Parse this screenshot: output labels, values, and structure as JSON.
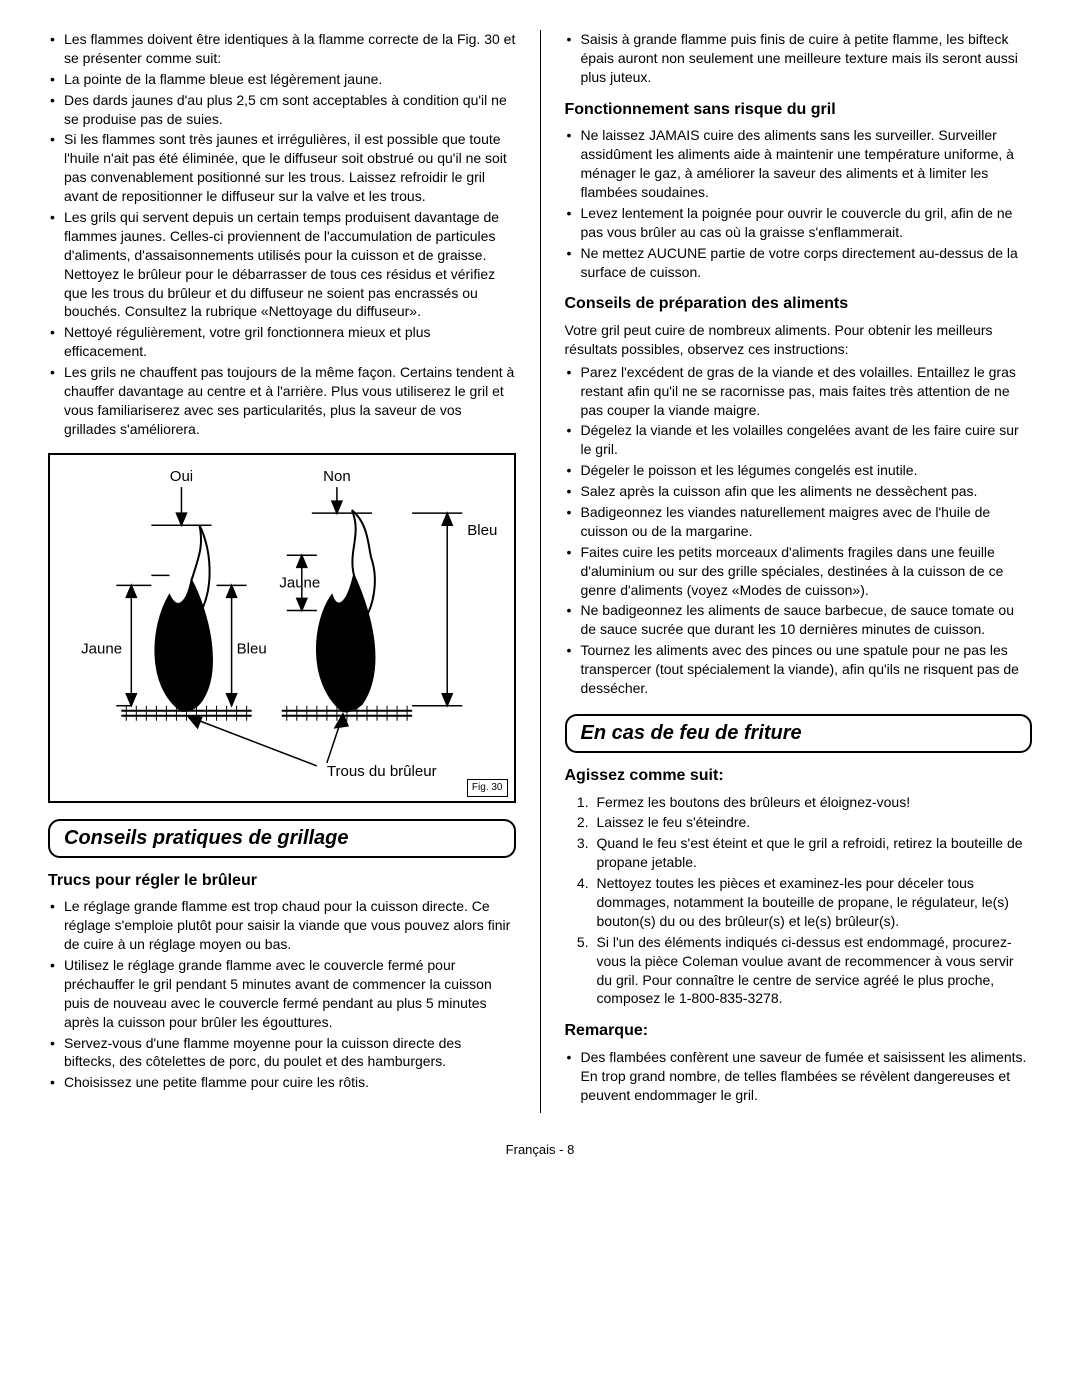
{
  "left": {
    "top_bullets": [
      "Les flammes doivent être identiques à la flamme correcte de la Fig. 30 et se présenter comme suit:",
      "La pointe de la flamme bleue est légèrement jaune.",
      "Des dards jaunes d'au plus 2,5 cm sont acceptables à condition qu'il ne se produise pas de suies.",
      "Si les flammes sont très jaunes et irrégulières, il est possible que toute l'huile n'ait pas été éliminée, que le diffuseur soit obstrué ou qu'il ne soit pas convenablement positionné sur les trous. Laissez refroidir le gril avant de repositionner le diffuseur sur la valve et les trous.",
      "Les grils qui servent depuis un certain temps produisent davantage de flammes jaunes. Celles-ci proviennent de l'accumulation de particules d'aliments, d'assaisonnements utilisés pour la cuisson et de graisse. Nettoyez le brûleur pour le débarrasser de tous ces résidus et vérifiez que les trous du brûleur et du diffuseur ne soient pas encrassés ou bouchés. Consultez la rubrique «Nettoyage du diffuseur».",
      "Nettoyé régulièrement, votre gril fonctionnera mieux et plus efficacement.",
      "Les grils ne chauffent pas toujours de la même façon. Certains tendent à chauffer davantage au centre et à l'arrière. Plus vous utiliserez le gril et vous familiariserez avec ses particularités, plus la saveur de vos grillades s'améliorera."
    ],
    "figure": {
      "oui": "Oui",
      "non": "Non",
      "bleu": "Bleu",
      "jaune": "Jaune",
      "jaune2": "Jaune",
      "bleu2": "Bleu",
      "trous": "Trous du brûleur",
      "caption": "Fig. 30"
    },
    "section1_title": "Conseils pratiques de grillage",
    "sub1": "Trucs pour régler le brûleur",
    "sub1_bullets": [
      "Le réglage grande flamme est trop chaud pour la cuisson directe. Ce réglage s'emploie plutôt pour saisir la viande que vous pouvez alors finir de cuire à un réglage moyen ou bas.",
      "Utilisez le réglage grande flamme avec le couvercle fermé pour préchauffer le gril pendant 5 minutes avant de commencer la cuisson puis de nouveau avec le couvercle fermé pendant au plus 5 minutes après la cuisson pour brûler les égouttures.",
      "Servez-vous d'une flamme moyenne pour la cuisson directe des biftecks, des côtelettes de porc, du poulet et des hamburgers.",
      "Choisissez une petite flamme pour cuire les rôtis."
    ]
  },
  "right": {
    "top_bullets": [
      "Saisis à grande flamme puis finis de cuire à petite flamme, les bifteck épais auront non seulement une meilleure texture mais ils seront aussi plus juteux."
    ],
    "sub1": "Fonctionnement sans risque du gril",
    "sub1_bullets": [
      "Ne laissez JAMAIS cuire des aliments sans les surveiller. Surveiller assidûment les aliments aide à maintenir une température uniforme, à ménager le gaz, à améliorer la saveur des aliments et à limiter les flambées soudaines.",
      "Levez lentement la poignée pour ouvrir le couvercle du gril, afin de ne pas vous brûler au cas où la graisse s'enflammerait.",
      "Ne mettez AUCUNE partie de votre corps directement au-dessus de la surface de cuisson."
    ],
    "sub2": "Conseils de préparation des aliments",
    "sub2_intro": "Votre gril peut cuire de nombreux aliments. Pour obtenir les meilleurs résultats possibles, observez ces instructions:",
    "sub2_bullets": [
      "Parez l'excédent de gras de la viande et des volailles. Entaillez le gras restant afin qu'il ne se racornisse pas, mais faites très attention de ne pas couper la viande maigre.",
      "Dégelez la viande et les volailles congelées avant de les faire cuire sur le gril.",
      "Dégeler le poisson et les légumes congelés est inutile.",
      "Salez après la cuisson afin que les aliments ne dessèchent pas.",
      "Badigeonnez les viandes naturellement maigres avec de l'huile de cuisson ou de la margarine.",
      "Faites cuire les petits morceaux d'aliments fragiles dans une feuille d'aluminium ou sur des grille spéciales, destinées à la cuisson de ce genre d'aliments (voyez «Modes de cuisson»).",
      "Ne badigeonnez les aliments de sauce barbecue, de sauce tomate ou de sauce sucrée que durant les 10 dernières minutes de cuisson.",
      "Tournez les aliments avec des pinces ou une spatule pour ne pas les transpercer (tout spécialement la viande), afin qu'ils ne risquent pas de dessécher."
    ],
    "section2_title": "En cas de feu de friture",
    "sub3": "Agissez comme suit:",
    "sub3_items": [
      "Fermez les boutons des brûleurs et éloignez-vous!",
      "Laissez le feu s'éteindre.",
      "Quand le feu s'est éteint et que le gril a refroidi, retirez la bouteille de propane jetable.",
      "Nettoyez toutes les pièces et examinez-les pour déceler tous dommages, notamment la bouteille de propane, le régulateur, le(s) bouton(s) du ou des brûleur(s) et le(s) brûleur(s).",
      "Si l'un des éléments indiqués ci-dessus est endommagé, procurez-vous la pièce Coleman voulue avant de recommencer à vous servir du gril. Pour connaître le centre de service agréé le plus proche, composez le 1-800-835-3278."
    ],
    "sub4": "Remarque:",
    "sub4_bullets": [
      "Des flambées confèrent une saveur de fumée et saisissent les aliments. En trop grand nombre, de telles flambées se révèlent dangereuses et peuvent endommager le gril."
    ]
  },
  "footer": "Français - 8"
}
